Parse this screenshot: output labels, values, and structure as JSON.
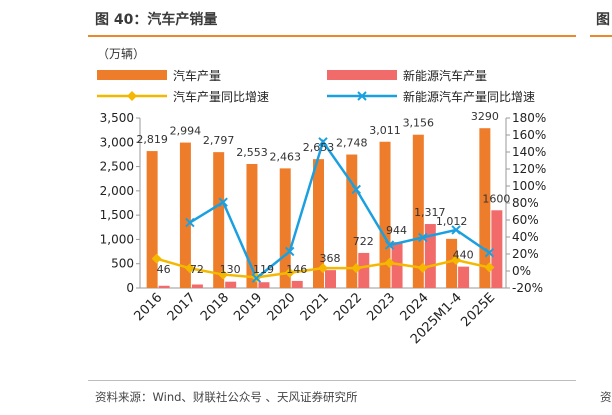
{
  "header": {
    "title": "图 40：汽车产销量",
    "edge_char": "图"
  },
  "footer": {
    "source": "资料来源：Wind、财联社公众号 、天风证券研究所",
    "edge_char": "资"
  },
  "chart_data": {
    "type": "bar",
    "unit_label": "（万辆）",
    "categories": [
      "2016",
      "2017",
      "2018",
      "2019",
      "2020",
      "2021",
      "2022",
      "2023",
      "2024",
      "2025M1-4",
      "2025E"
    ],
    "series": [
      {
        "name": "汽车产量",
        "type": "bar",
        "axis": "left",
        "color": "#ee7d2b",
        "values": [
          2819,
          2994,
          2797,
          2553,
          2463,
          2653,
          2748,
          3011,
          3156,
          1012,
          3290
        ],
        "labels": [
          "2,819",
          "2,994",
          "2,797",
          "2,553",
          "2,463",
          "2,653",
          "2,748",
          "3,011",
          "3,156",
          "1,012",
          "3290"
        ]
      },
      {
        "name": "新能源汽车产量",
        "type": "bar",
        "axis": "left",
        "color": "#f26b6b",
        "values": [
          46,
          72,
          130,
          119,
          146,
          368,
          722,
          944,
          1317,
          440,
          1600
        ],
        "labels": [
          "46",
          "72",
          "130",
          "119",
          "146",
          "368",
          "722",
          "944",
          "1,317",
          "440",
          "1600"
        ]
      },
      {
        "name": "汽车产量同比增速",
        "type": "line",
        "axis": "right",
        "color": "#f5b800",
        "marker": "diamond",
        "values": [
          14.5,
          3.2,
          -4.2,
          -7.5,
          -2.0,
          3.4,
          3.4,
          9.6,
          3.7,
          12.9,
          4.2
        ]
      },
      {
        "name": "新能源汽车产量同比增速",
        "type": "line",
        "axis": "right",
        "color": "#1aa0e0",
        "marker": "x",
        "values": [
          null,
          57,
          81,
          -8.5,
          23,
          152,
          96,
          30.5,
          39.5,
          48.3,
          21.5
        ]
      }
    ],
    "y_left": {
      "range": [
        0,
        3500
      ],
      "ticks": [
        "0",
        "500",
        "1,000",
        "1,500",
        "2,000",
        "2,500",
        "3,000",
        "3,500"
      ]
    },
    "y_right": {
      "range": [
        -20,
        180
      ],
      "ticks": [
        "-20%",
        "0%",
        "20%",
        "40%",
        "60%",
        "80%",
        "100%",
        "120%",
        "140%",
        "160%",
        "180%"
      ]
    },
    "grid": false,
    "legend_position": "top"
  }
}
